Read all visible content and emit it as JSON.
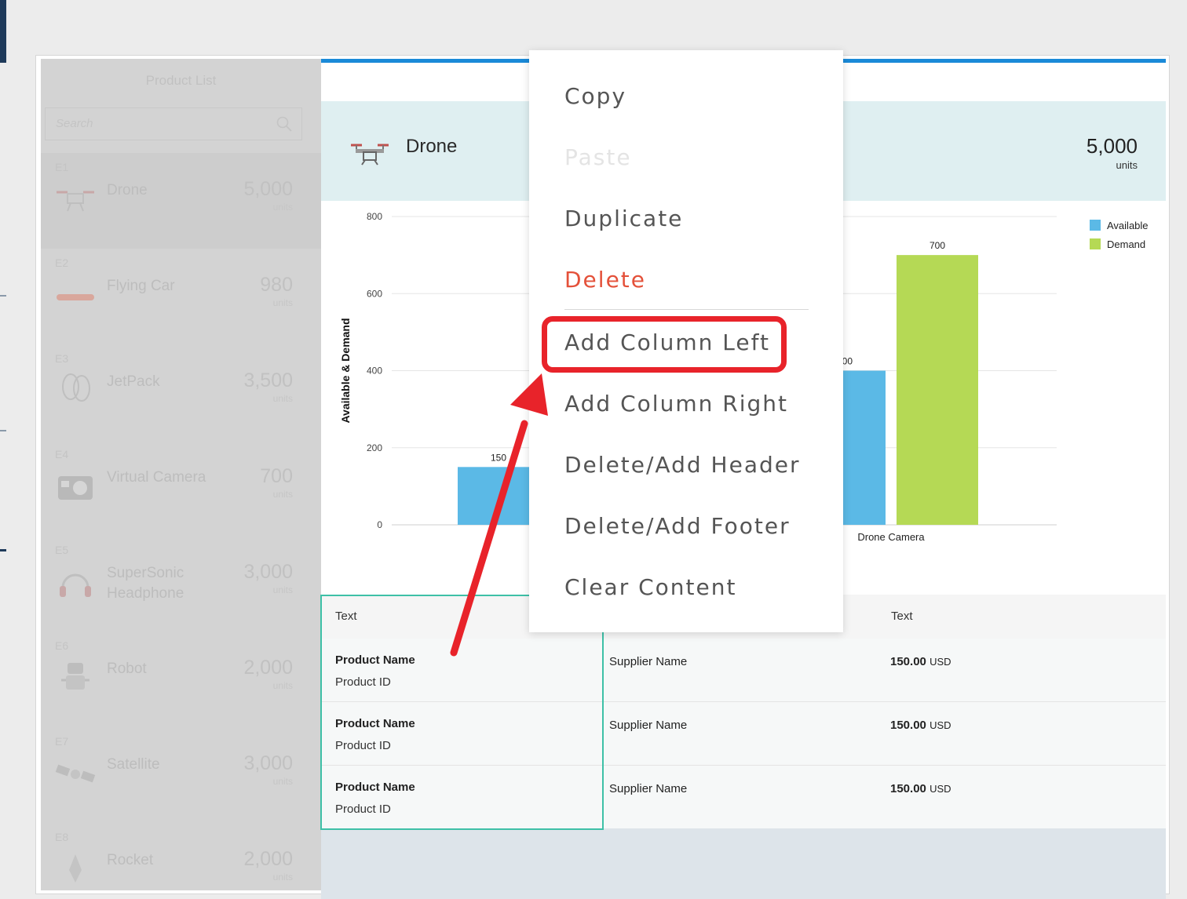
{
  "sidebar": {
    "title": "Product List",
    "search_placeholder": "Search",
    "items": [
      {
        "code": "E1",
        "name": "Drone",
        "qty": "5,000",
        "unit": "units"
      },
      {
        "code": "E2",
        "name": "Flying Car",
        "qty": "980",
        "unit": "units"
      },
      {
        "code": "E3",
        "name": "JetPack",
        "qty": "3,500",
        "unit": "units"
      },
      {
        "code": "E4",
        "name": "Virtual Camera",
        "qty": "700",
        "unit": "units"
      },
      {
        "code": "E5",
        "name": "SuperSonic Headphone",
        "qty": "3,000",
        "unit": "units"
      },
      {
        "code": "E6",
        "name": "Robot",
        "qty": "2,000",
        "unit": "units"
      },
      {
        "code": "E7",
        "name": "Satellite",
        "qty": "3,000",
        "unit": "units"
      },
      {
        "code": "E8",
        "name": "Rocket",
        "qty": "2,000",
        "unit": "units"
      }
    ]
  },
  "header": {
    "product": "Drone",
    "qty": "5,000",
    "unit": "units"
  },
  "chart_data": {
    "type": "bar",
    "ylabel": "Available & Demand",
    "xlabel": "",
    "ylim": [
      0,
      800
    ],
    "yticks": [
      "0",
      "200",
      "400",
      "600",
      "800"
    ],
    "categories": [
      "",
      "Drone Camera"
    ],
    "series": [
      {
        "name": "Available",
        "values": [
          150,
          400
        ],
        "labels": [
          "150",
          "400"
        ]
      },
      {
        "name": "Demand",
        "values": [
          null,
          700
        ],
        "labels": [
          "",
          "700"
        ]
      }
    ],
    "legend": "top-right",
    "colors": {
      "Available": "#5bb9e6",
      "Demand": "#b5d955"
    }
  },
  "table": {
    "headers": [
      "Text",
      "",
      "Text"
    ],
    "rows": [
      {
        "product_name": "Product Name",
        "product_id": "Product ID",
        "supplier": "Supplier Name",
        "price": "150.00",
        "currency": "USD"
      },
      {
        "product_name": "Product Name",
        "product_id": "Product ID",
        "supplier": "Supplier Name",
        "price": "150.00",
        "currency": "USD"
      },
      {
        "product_name": "Product Name",
        "product_id": "Product ID",
        "supplier": "Supplier Name",
        "price": "150.00",
        "currency": "USD"
      }
    ]
  },
  "context_menu": {
    "items": [
      {
        "label": "Copy",
        "state": "normal"
      },
      {
        "label": "Paste",
        "state": "disabled"
      },
      {
        "label": "Duplicate",
        "state": "normal"
      },
      {
        "label": "Delete",
        "state": "danger"
      },
      {
        "label": "Add Column Left",
        "state": "highlighted"
      },
      {
        "label": "Add Column Right",
        "state": "normal"
      },
      {
        "label": "Delete/Add Header",
        "state": "normal"
      },
      {
        "label": "Delete/Add Footer",
        "state": "normal"
      },
      {
        "label": "Clear Content",
        "state": "normal"
      }
    ]
  },
  "annotation": {
    "color": "#e8232a"
  }
}
